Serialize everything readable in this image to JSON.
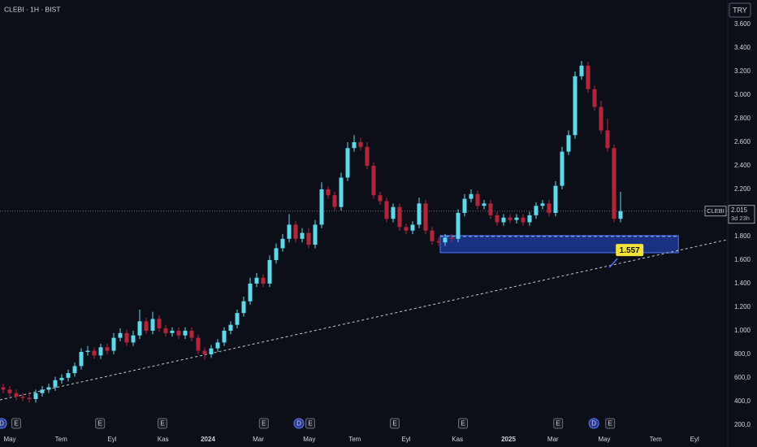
{
  "chart_data": {
    "type": "candlestick",
    "title": "CLEBI · 1H · BIST",
    "currency": "TRY",
    "up_color": "#5fd8ec",
    "down_color": "#b3253a",
    "open": [
      520,
      500,
      470,
      440,
      430,
      420,
      470,
      500,
      520,
      580,
      600,
      640,
      700,
      820,
      830,
      790,
      860,
      830,
      940,
      980,
      900,
      960,
      1080,
      1000,
      1100,
      1020,
      980,
      1000,
      960,
      1000,
      940,
      830,
      800,
      850,
      900,
      1000,
      1050,
      1150,
      1250,
      1400,
      1450,
      1400,
      1600,
      1700,
      1780,
      1900,
      1780,
      1830,
      1730,
      1900,
      2200,
      2150,
      2050,
      2300,
      2550,
      2600,
      2560,
      2400,
      2150,
      2100,
      1950,
      2050,
      1880,
      1850,
      1900,
      2080,
      1850,
      1760,
      1750,
      1790,
      1780,
      2000,
      2120,
      2160,
      2060,
      2080,
      1980,
      1920,
      1960,
      1940,
      1960,
      1920,
      1980,
      2060,
      2080,
      2000,
      2230,
      2520,
      2660,
      3160,
      3250,
      3050,
      2900,
      2700,
      2550,
      1950
    ],
    "high": [
      550,
      530,
      500,
      470,
      460,
      500,
      530,
      550,
      610,
      630,
      670,
      730,
      850,
      870,
      860,
      890,
      890,
      980,
      1020,
      1010,
      1000,
      1180,
      1110,
      1160,
      1130,
      1050,
      1030,
      1030,
      1030,
      1030,
      970,
      860,
      880,
      930,
      1030,
      1080,
      1180,
      1290,
      1450,
      1490,
      1480,
      1640,
      1740,
      1820,
      1990,
      1930,
      1870,
      1870,
      1940,
      2260,
      2230,
      2180,
      2340,
      2600,
      2660,
      2640,
      2600,
      2430,
      2180,
      2130,
      2080,
      2080,
      1910,
      1930,
      2130,
      2110,
      1880,
      1790,
      1820,
      1820,
      2030,
      2160,
      2200,
      2190,
      2110,
      2110,
      2010,
      1990,
      1990,
      1990,
      1990,
      2010,
      2090,
      2110,
      2110,
      2270,
      2560,
      2700,
      3200,
      3290,
      3280,
      3080,
      2950,
      2800,
      2580,
      2180
    ],
    "low": [
      470,
      440,
      410,
      400,
      390,
      390,
      440,
      470,
      490,
      550,
      570,
      610,
      670,
      790,
      760,
      760,
      800,
      800,
      910,
      870,
      870,
      930,
      970,
      970,
      990,
      950,
      950,
      930,
      930,
      910,
      800,
      750,
      770,
      820,
      870,
      970,
      1020,
      1120,
      1220,
      1370,
      1370,
      1370,
      1570,
      1670,
      1750,
      1750,
      1750,
      1700,
      1700,
      1870,
      2120,
      2020,
      2020,
      2270,
      2520,
      2530,
      2370,
      2120,
      2070,
      1920,
      1920,
      1850,
      1820,
      1820,
      1870,
      1820,
      1730,
      1720,
      1720,
      1750,
      1750,
      1970,
      2090,
      2030,
      2030,
      1950,
      1890,
      1890,
      1910,
      1910,
      1890,
      1890,
      1950,
      2030,
      1970,
      1970,
      2200,
      2490,
      2630,
      3130,
      3020,
      2870,
      2670,
      2520,
      1920,
      1920
    ],
    "close": [
      500,
      470,
      440,
      430,
      420,
      470,
      500,
      520,
      580,
      600,
      640,
      700,
      820,
      830,
      790,
      860,
      830,
      940,
      980,
      900,
      960,
      1080,
      1000,
      1100,
      1020,
      980,
      1000,
      960,
      1000,
      940,
      830,
      800,
      850,
      900,
      1000,
      1050,
      1150,
      1250,
      1400,
      1450,
      1400,
      1600,
      1700,
      1780,
      1900,
      1780,
      1830,
      1730,
      1900,
      2200,
      2150,
      2050,
      2300,
      2550,
      2600,
      2560,
      2400,
      2150,
      2100,
      1950,
      2050,
      1880,
      1850,
      1900,
      2080,
      1850,
      1760,
      1750,
      1790,
      1780,
      2000,
      2120,
      2160,
      2060,
      2080,
      1980,
      1920,
      1960,
      1940,
      1960,
      1920,
      1980,
      2060,
      2080,
      2000,
      2230,
      2520,
      2660,
      3160,
      3250,
      3050,
      2900,
      2700,
      2550,
      1950,
      2015
    ],
    "xlim": [
      -0.5,
      111.375
    ],
    "xticks": [
      {
        "value": 1,
        "label": "May"
      },
      {
        "value": 8.9,
        "label": "Tem"
      },
      {
        "value": 16.75,
        "label": "Eyl"
      },
      {
        "value": 24.6,
        "label": "Kas"
      },
      {
        "value": 31.5,
        "label": "2024"
      },
      {
        "value": 39.25,
        "label": "Mar"
      },
      {
        "value": 47.1,
        "label": "May"
      },
      {
        "value": 54.1,
        "label": "Tem"
      },
      {
        "value": 62,
        "label": "Eyl"
      },
      {
        "value": 69.9,
        "label": "Kas"
      },
      {
        "value": 77.75,
        "label": "2025"
      },
      {
        "value": 84.6,
        "label": "Mar"
      },
      {
        "value": 92.5,
        "label": "May"
      },
      {
        "value": 100.4,
        "label": "Tem"
      },
      {
        "value": 106.4,
        "label": "Eyl"
      }
    ],
    "ylim": [
      151,
      3807
    ],
    "yticks": [
      {
        "value": 3600,
        "label": "3.600"
      },
      {
        "value": 3400,
        "label": "3.400"
      },
      {
        "value": 3200,
        "label": "3.200"
      },
      {
        "value": 3000,
        "label": "3.000"
      },
      {
        "value": 2800,
        "label": "2.800"
      },
      {
        "value": 2600,
        "label": "2.600"
      },
      {
        "value": 2400,
        "label": "2.400"
      },
      {
        "value": 2200,
        "label": "2.200"
      },
      {
        "value": 2000,
        "label": "2.000"
      },
      {
        "value": 1800,
        "label": "1.800"
      },
      {
        "value": 1600,
        "label": "1.600"
      },
      {
        "value": 1400,
        "label": "1.400"
      },
      {
        "value": 1200,
        "label": "1.200"
      },
      {
        "value": 1000,
        "label": "1.000"
      },
      {
        "value": 800,
        "label": "800,0"
      },
      {
        "value": 600,
        "label": "600,0"
      },
      {
        "value": 400,
        "label": "400,0"
      },
      {
        "value": 200,
        "label": "200,0"
      }
    ],
    "last_price": {
      "symbol": "CLEBI",
      "value": 2015,
      "label": "2.015",
      "countdown": "3d 23h"
    },
    "zone": {
      "xlim": [
        67.25,
        103.9
      ],
      "ylim": [
        1662,
        1807
      ]
    },
    "trendline": {
      "x": [
        -0.5,
        111.375
      ],
      "y": [
        413,
        1772
      ]
    },
    "annotation": {
      "x": 93.9,
      "value": 1557,
      "label": "1.557"
    },
    "events": [
      {
        "x": -0.25,
        "label": "D"
      },
      {
        "x": 2,
        "label": "E"
      },
      {
        "x": 14.9,
        "label": "E"
      },
      {
        "x": 24.5,
        "label": "E"
      },
      {
        "x": 40.1,
        "label": "E"
      },
      {
        "x": 45.5,
        "label": "D"
      },
      {
        "x": 47.25,
        "label": "E"
      },
      {
        "x": 60.25,
        "label": "E"
      },
      {
        "x": 70.75,
        "label": "E"
      },
      {
        "x": 85.4,
        "label": "E"
      },
      {
        "x": 90.9,
        "label": "D"
      },
      {
        "x": 93.4,
        "label": "E"
      }
    ]
  }
}
